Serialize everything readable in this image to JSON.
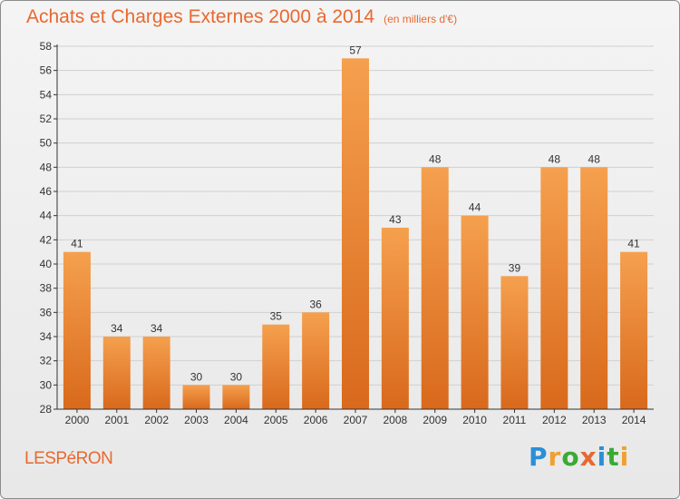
{
  "title": "Achats et Charges Externes 2000 à 2014",
  "subtitle": "(en milliers d'€)",
  "commune": "LESPéRON",
  "logo": {
    "letters": [
      "P",
      "r",
      "o",
      "x",
      "i",
      "t",
      "i"
    ],
    "colors": [
      "#2a8fd6",
      "#f0a030",
      "#3aaa35",
      "#e8692f",
      "#2a8fd6",
      "#3aaa35",
      "#f0a030"
    ]
  },
  "colors": {
    "bar_top": "#f5a04e",
    "bar_bottom": "#d9691c",
    "axis": "#333333",
    "grid": "#d0d0d0",
    "label": "#333333"
  },
  "chart_data": {
    "type": "bar",
    "categories": [
      "2000",
      "2001",
      "2002",
      "2003",
      "2004",
      "2005",
      "2006",
      "2007",
      "2008",
      "2009",
      "2010",
      "2011",
      "2012",
      "2013",
      "2014"
    ],
    "values": [
      41,
      34,
      34,
      30,
      30,
      35,
      36,
      57,
      43,
      48,
      44,
      39,
      48,
      48,
      41
    ],
    "title": "Achats et Charges Externes 2000 à 2014",
    "subtitle": "(en milliers d'€)",
    "ylim": [
      28,
      58
    ],
    "yticks": [
      28,
      30,
      32,
      34,
      36,
      38,
      40,
      42,
      44,
      46,
      48,
      50,
      52,
      54,
      56,
      58
    ],
    "grid": true
  }
}
